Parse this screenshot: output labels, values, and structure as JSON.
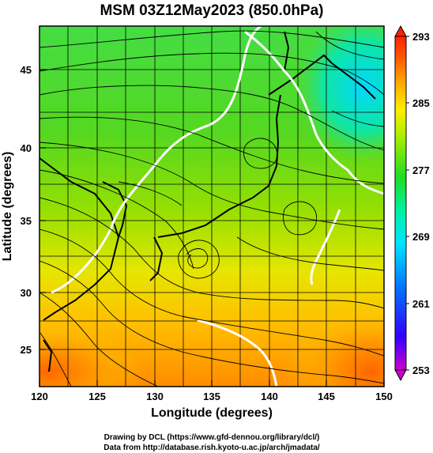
{
  "title": "MSM 03Z12May2023 (850.0hPa)",
  "xlabel": "Longitude (degrees)",
  "ylabel": "Latitude  (degrees)",
  "x_ticks": [
    "120",
    "125",
    "130",
    "135",
    "140",
    "145",
    "150"
  ],
  "y_ticks": [
    "25",
    "30",
    "35",
    "40",
    "45"
  ],
  "colorbar": {
    "ticks": [
      "293",
      "285",
      "277",
      "269",
      "261",
      "253"
    ],
    "min": 253,
    "max": 293,
    "colors": [
      "#cc00cc",
      "#3300ff",
      "#0077ff",
      "#00e5ff",
      "#00f0a0",
      "#22dd22",
      "#aaee00",
      "#ffee00",
      "#ffaa00",
      "#ff5500",
      "#ff2200"
    ]
  },
  "credits": {
    "line1": "Drawing by DCL (https://www.gfd-dennou.org/library/dcl/)",
    "line2": "Data from http://database.rish.kyoto-u.ac.jp/arch/jmadata/"
  },
  "chart_data": {
    "type": "heatmap",
    "title": "MSM 03Z12May2023 (850.0hPa)",
    "xlabel": "Longitude (degrees)",
    "ylabel": "Latitude  (degrees)",
    "xlim": [
      120,
      150
    ],
    "ylim": [
      22.5,
      47.5
    ],
    "x_ticks": [
      120,
      125,
      130,
      135,
      140,
      145,
      150
    ],
    "y_ticks": [
      25,
      30,
      35,
      40,
      45
    ],
    "colorbar_range": [
      253,
      293
    ],
    "colorbar_ticks": [
      253,
      261,
      269,
      277,
      285,
      293
    ],
    "grid": true,
    "overlays": [
      "streamlines",
      "coastlines",
      "contour"
    ]
  }
}
